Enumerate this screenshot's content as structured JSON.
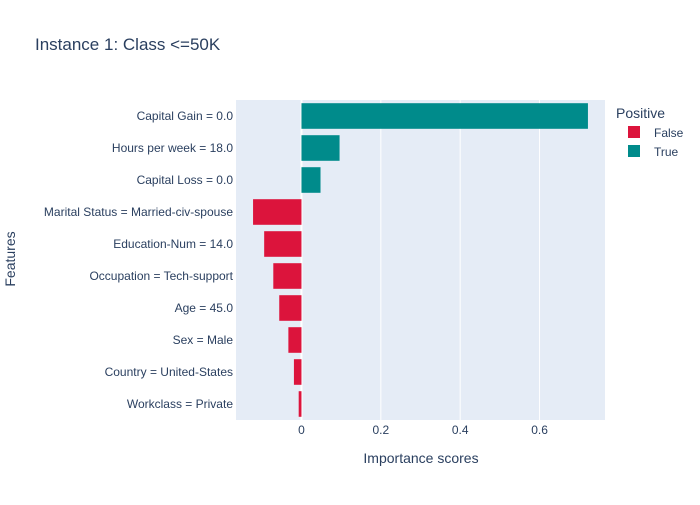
{
  "chart_data": {
    "type": "bar",
    "orientation": "horizontal",
    "title": "Instance 1: Class <=50K",
    "xlabel": "Importance scores",
    "ylabel": "Features",
    "xlim": [
      -0.165,
      0.765
    ],
    "xticks": [
      0,
      0.2,
      0.4,
      0.6
    ],
    "xtick_labels": [
      "0",
      "0.2",
      "0.4",
      "0.6"
    ],
    "grid": true,
    "legend": {
      "title": "Positive",
      "position": "top-right",
      "entries": [
        "False",
        "True"
      ]
    },
    "colors": {
      "False": "#dc143c",
      "True": "#008b8b",
      "plot_background": "#e5ecf6",
      "text": "#2a3f5f"
    },
    "categories": [
      "Capital Gain = 0.0",
      "Hours per week = 18.0",
      "Capital Loss = 0.0",
      "Marital Status = Married-civ-spouse",
      "Education-Num = 14.0",
      "Occupation = Tech-support",
      "Age = 45.0",
      "Sex = Male",
      "Country = United-States",
      "Workclass = Private"
    ],
    "values": [
      0.722,
      0.096,
      0.048,
      -0.122,
      -0.094,
      -0.071,
      -0.056,
      -0.033,
      -0.019,
      -0.007
    ],
    "positive": [
      true,
      true,
      true,
      false,
      false,
      false,
      false,
      false,
      false,
      false
    ]
  }
}
